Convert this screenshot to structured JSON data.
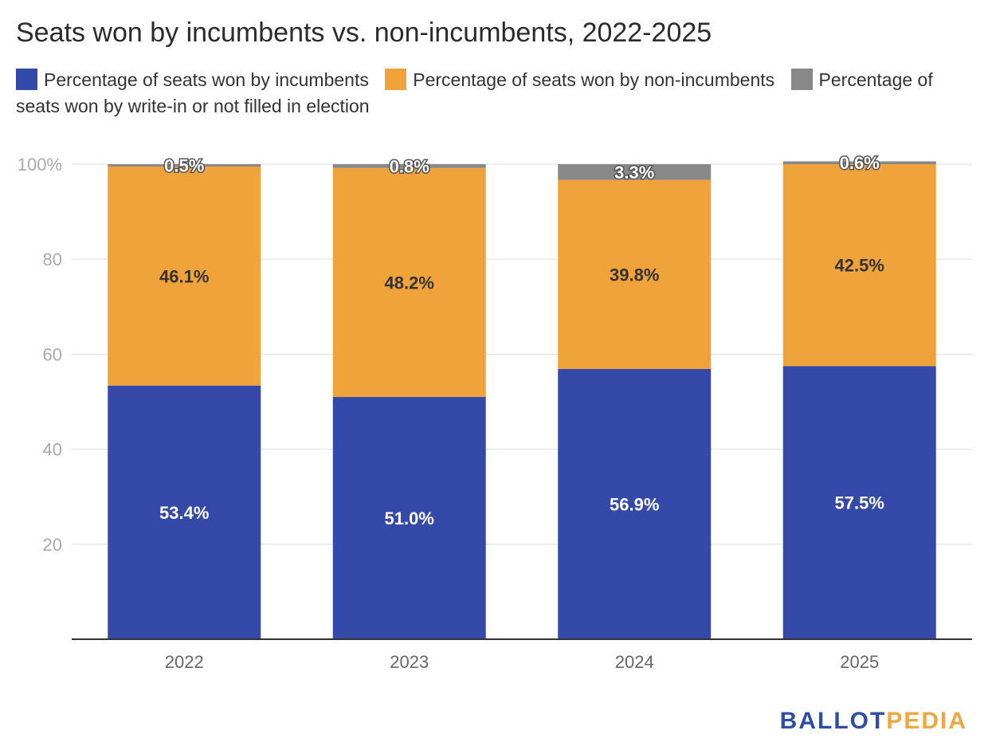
{
  "chart_data": {
    "type": "bar",
    "stacked": true,
    "title": "Seats won by incumbents vs. non-incumbents, 2022-2025",
    "categories": [
      "2022",
      "2023",
      "2024",
      "2025"
    ],
    "series": [
      {
        "name": "Percentage of seats won by incumbents",
        "color": "#3449a8",
        "values": [
          53.4,
          51.0,
          56.9,
          57.5
        ],
        "labels": [
          "53.4%",
          "51.0%",
          "56.9%",
          "57.5%"
        ]
      },
      {
        "name": "Percentage of seats won by non-incumbents",
        "color": "#f0a33a",
        "values": [
          46.1,
          48.2,
          39.8,
          42.5
        ],
        "labels": [
          "46.1%",
          "48.2%",
          "39.8%",
          "42.5%"
        ]
      },
      {
        "name": "Percentage of seats won by write-in or not filled in election",
        "color": "#888888",
        "values": [
          0.5,
          0.8,
          3.3,
          0.6
        ],
        "labels": [
          "0.5%",
          "0.8%",
          "3.3%",
          "0.6%"
        ]
      }
    ],
    "yticks": [
      {
        "value": 20,
        "label": "20"
      },
      {
        "value": 40,
        "label": "40"
      },
      {
        "value": 60,
        "label": "60"
      },
      {
        "value": 80,
        "label": "80"
      },
      {
        "value": 100,
        "label": "100%"
      }
    ],
    "ylim": [
      0,
      100
    ],
    "grid": true,
    "legend_position": "top"
  },
  "branding": {
    "logo_part1": "BALLOT",
    "logo_part2": "PEDIA"
  }
}
